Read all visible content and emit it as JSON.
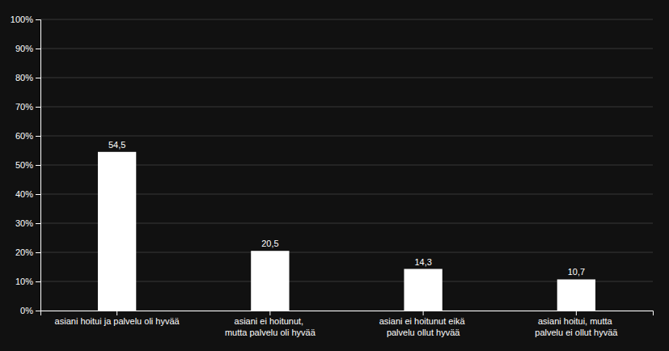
{
  "chart_data": {
    "type": "bar",
    "categories": [
      "asiani hoitui ja palvelu oli hyvää",
      "asiani ei hoitunut, mutta palvelu oli hyvää",
      "asiani ei hoitunut eikä palvelu ollut hyvää",
      "asiani hoitui, mutta palvelu ei ollut hyvää"
    ],
    "values": [
      54.5,
      20.5,
      14.3,
      10.7
    ],
    "value_labels": [
      "54,5",
      "20,5",
      "14,3",
      "10,7"
    ],
    "data_labels": true,
    "color": "#ffffff",
    "ylim": [
      0,
      100
    ],
    "yticks": [
      {
        "value": 0,
        "label": "0%"
      },
      {
        "value": 10,
        "label": "10%"
      },
      {
        "value": 20,
        "label": "20%"
      },
      {
        "value": 30,
        "label": "30%"
      },
      {
        "value": 40,
        "label": "40%"
      },
      {
        "value": 50,
        "label": "50%"
      },
      {
        "value": 60,
        "label": "60%"
      },
      {
        "value": 70,
        "label": "70%"
      },
      {
        "value": 80,
        "label": "80%"
      },
      {
        "value": 90,
        "label": "90%"
      },
      {
        "value": 100,
        "label": "100%"
      }
    ],
    "grid": true
  }
}
